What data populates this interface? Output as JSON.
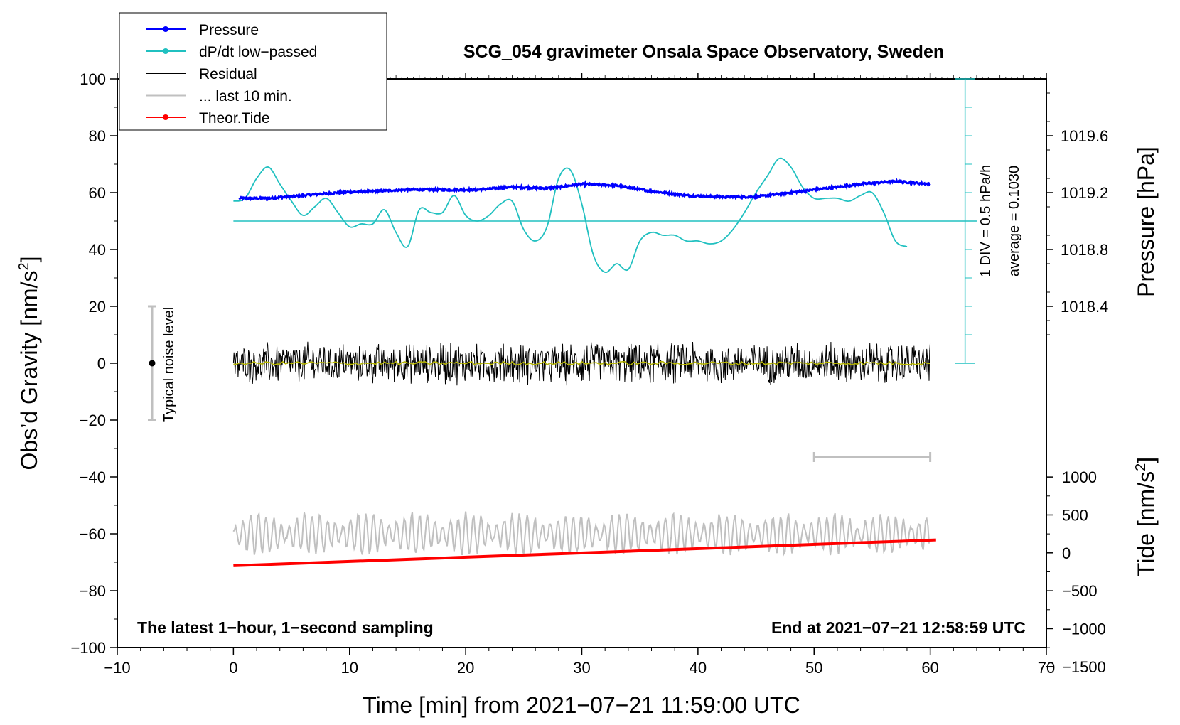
{
  "chart_data": {
    "type": "line",
    "title": "SCG_054 gravimeter Onsala Space Observatory, Sweden",
    "xlabel": "Time [min] from 2021−07−21 11:59:00 UTC",
    "ylabel_left_main": "Obs’d Gravity [nm/s",
    "ylabel_left_sup": "2",
    "ylabel_left_end": "]",
    "ylabel_right_pressure": "Pressure [hPa]",
    "ylabel_right_tide_main": "Tide [nm/s",
    "ylabel_right_tide_sup": "2",
    "ylabel_right_tide_end": "]",
    "xlim": [
      -10,
      70
    ],
    "ylim": [
      -100,
      100
    ],
    "x_ticks": [
      "−10",
      "0",
      "10",
      "20",
      "30",
      "40",
      "50",
      "60",
      "70"
    ],
    "y_ticks": [
      "−100",
      "−80",
      "−60",
      "−40",
      "−20",
      "0",
      "20",
      "40",
      "60",
      "80",
      "100"
    ],
    "pressure_ticks": [
      "1018.4",
      "1018.8",
      "1019.2",
      "1019.6"
    ],
    "pressure_tick_values": [
      1018.4,
      1018.8,
      1019.2,
      1019.6
    ],
    "tide_ticks": [
      "−1500",
      "−1000",
      "−500",
      "0",
      "500",
      "1000"
    ],
    "tide_tick_values": [
      -1500,
      -1000,
      -500,
      0,
      500,
      1000
    ],
    "legend": {
      "position": "top-left",
      "entries": [
        {
          "label": "Pressure",
          "color": "#0000ff",
          "marker": true
        },
        {
          "label": "dP/dt low−passed",
          "color": "#20c0c0",
          "marker": true
        },
        {
          "label": "Residual",
          "color": "#000000",
          "marker": false
        },
        {
          "label": "... last 10 min.",
          "color": "#c0c0c0",
          "marker": false
        },
        {
          "label": "Theor.Tide",
          "color": "#ff0000",
          "marker": true
        }
      ]
    },
    "annotations": {
      "noise": "Typical noise level",
      "div": "1 DIV = 0.5 hPa/h",
      "average": "average = 0.1030",
      "footer_left": "The latest 1−hour, 1−second sampling",
      "footer_right": "End at 2021−07−21 12:58:59 UTC"
    },
    "series": [
      {
        "name": "Pressure",
        "unit": "hPa",
        "color": "#0000ff",
        "x": [
          0.5,
          3,
          6,
          9,
          12,
          15,
          18,
          21,
          24,
          27,
          30,
          33,
          36,
          39,
          42,
          45,
          48,
          51,
          54,
          57,
          60
        ],
        "values": [
          1019.16,
          1019.16,
          1019.18,
          1019.2,
          1019.21,
          1019.22,
          1019.22,
          1019.22,
          1019.24,
          1019.23,
          1019.26,
          1019.25,
          1019.21,
          1019.18,
          1019.17,
          1019.17,
          1019.2,
          1019.23,
          1019.26,
          1019.28,
          1019.26
        ]
      },
      {
        "name": "dP/dt low-passed",
        "unit": "div",
        "color": "#20c0c0",
        "x": [
          0,
          1,
          2,
          3,
          4,
          5,
          6,
          7,
          8,
          9,
          10,
          11,
          12,
          13,
          14,
          15,
          16,
          17,
          18,
          19,
          20,
          21,
          22,
          23,
          24,
          25,
          26,
          27,
          28,
          29,
          30,
          31,
          32,
          33,
          34,
          35,
          36,
          37,
          38,
          39,
          40,
          41,
          42,
          43,
          44,
          45,
          46,
          47,
          48,
          49,
          50,
          51,
          52,
          53,
          54,
          55,
          56,
          57,
          58
        ],
        "values": [
          5.7,
          5.8,
          6.5,
          6.9,
          6.3,
          5.7,
          5.2,
          5.5,
          5.8,
          5.3,
          4.8,
          4.9,
          4.9,
          5.4,
          4.6,
          4.1,
          5.4,
          5.3,
          5.3,
          5.9,
          5.2,
          5.0,
          5.2,
          5.6,
          5.7,
          4.7,
          4.3,
          4.8,
          6.5,
          6.8,
          5.6,
          3.8,
          3.2,
          3.5,
          3.3,
          4.3,
          4.6,
          4.5,
          4.5,
          4.3,
          4.3,
          4.2,
          4.3,
          4.7,
          5.3,
          6.0,
          6.6,
          7.2,
          6.9,
          6.2,
          5.8,
          5.8,
          5.8,
          5.7,
          5.9,
          6.0,
          5.3,
          4.3,
          4.1
        ]
      },
      {
        "name": "Residual",
        "unit": "nm/s2",
        "color": "#000000",
        "x": [
          0,
          60
        ],
        "values": [
          0,
          0
        ]
      },
      {
        "name": "... last 10 min.",
        "unit": "nm/s2",
        "color": "#c0c0c0",
        "x": [
          0,
          60
        ],
        "values": [
          -60,
          -60
        ]
      },
      {
        "name": "Theor.Tide",
        "unit": "nm/s2",
        "color": "#ff0000",
        "x": [
          0,
          60.5
        ],
        "values": [
          -170,
          170
        ]
      }
    ],
    "dpdt_baseline": 5,
    "last10_range": [
      50,
      60
    ],
    "noise_bar": {
      "x": -7,
      "center": 0,
      "range": [
        -20,
        20
      ]
    }
  }
}
